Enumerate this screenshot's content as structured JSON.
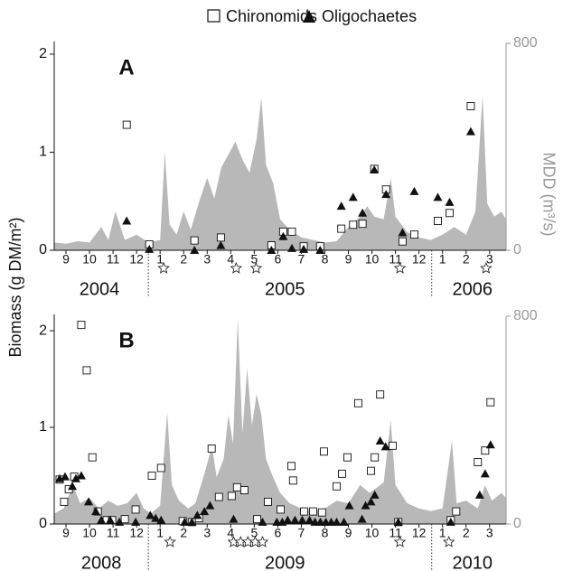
{
  "chart_data": [
    {
      "type": "scatter",
      "panel_label": "A",
      "ylabel": "Biomass (g DM/m²)",
      "y2label": "MDD (m³/s)",
      "xlim": [
        0,
        19.2
      ],
      "xticks": [
        {
          "value": 0.5,
          "label": "9"
        },
        {
          "value": 1.5,
          "label": "10"
        },
        {
          "value": 2.5,
          "label": "11"
        },
        {
          "value": 3.5,
          "label": "12"
        },
        {
          "value": 4.5,
          "label": "1"
        },
        {
          "value": 5.5,
          "label": "2"
        },
        {
          "value": 6.5,
          "label": "3"
        },
        {
          "value": 7.5,
          "label": "4"
        },
        {
          "value": 8.5,
          "label": "5"
        },
        {
          "value": 9.5,
          "label": "6"
        },
        {
          "value": 10.5,
          "label": "7"
        },
        {
          "value": 11.5,
          "label": "8"
        },
        {
          "value": 12.5,
          "label": "9"
        },
        {
          "value": 13.5,
          "label": "10"
        },
        {
          "value": 14.5,
          "label": "11"
        },
        {
          "value": 15.5,
          "label": "12"
        },
        {
          "value": 16.5,
          "label": "1"
        },
        {
          "value": 17.5,
          "label": "2"
        },
        {
          "value": 18.5,
          "label": "3"
        }
      ],
      "year_labels": [
        {
          "value": 1.92,
          "label": "2004"
        },
        {
          "value": 9.8,
          "label": "2005"
        },
        {
          "value": 17.77,
          "label": "2006"
        }
      ],
      "separators": [
        4.0,
        16.04
      ],
      "flood_stars": [
        4.65,
        7.73,
        8.58,
        14.69,
        18.35
      ],
      "ylim": [
        0,
        2.11
      ],
      "yticks": [
        0,
        1,
        2
      ],
      "y2lim": [
        0,
        800
      ],
      "y2ticks": [
        0,
        800
      ],
      "discharge": {
        "axis": "y2",
        "color": "#b8b8b8",
        "x": [
          0,
          0.5,
          1,
          1.5,
          2,
          2.3,
          2.6,
          3,
          3.5,
          4,
          4.5,
          4.7,
          4.9,
          5.2,
          5.5,
          5.8,
          6.2,
          6.5,
          6.8,
          7.1,
          7.4,
          7.7,
          8,
          8.3,
          8.6,
          8.8,
          9,
          9.3,
          9.6,
          10,
          10.5,
          11,
          11.5,
          12,
          12.5,
          13,
          13.3,
          13.6,
          14,
          14.3,
          14.5,
          15,
          15.5,
          16,
          16.5,
          17,
          17.5,
          17.9,
          18.2,
          18.4,
          18.7,
          19,
          19.2
        ],
        "values": [
          30,
          25,
          35,
          30,
          90,
          40,
          150,
          40,
          60,
          30,
          40,
          380,
          100,
          60,
          150,
          80,
          200,
          280,
          200,
          320,
          370,
          420,
          350,
          300,
          430,
          590,
          330,
          260,
          120,
          80,
          50,
          40,
          30,
          35,
          90,
          130,
          170,
          130,
          120,
          280,
          130,
          70,
          50,
          40,
          60,
          90,
          60,
          150,
          600,
          180,
          130,
          150,
          120
        ]
      },
      "series": [
        {
          "name": "Chironomids",
          "color": "#ffffff",
          "marker": "square",
          "x": [
            3.08,
            4.04,
            5.96,
            7.08,
            9.23,
            9.73,
            10.1,
            10.6,
            11.3,
            12.2,
            12.7,
            13.1,
            13.6,
            14.1,
            14.8,
            15.3,
            16.3,
            16.8,
            17.7
          ],
          "values": [
            1.28,
            0.06,
            0.1,
            0.13,
            0.05,
            0.19,
            0.19,
            0.04,
            0.04,
            0.22,
            0.26,
            0.27,
            0.83,
            0.62,
            0.09,
            0.16,
            0.3,
            0.38,
            1.47
          ]
        },
        {
          "name": "Oligochaetes",
          "color": "#111111",
          "marker": "triangle",
          "x": [
            3.08,
            4.04,
            5.96,
            7.08,
            9.23,
            9.73,
            10.1,
            10.6,
            11.3,
            12.2,
            12.7,
            13.1,
            13.6,
            14.1,
            14.8,
            15.3,
            16.3,
            16.8,
            17.7
          ],
          "values": [
            0.3,
            0.01,
            0,
            0.05,
            0,
            0.14,
            0.02,
            0.01,
            0,
            0.45,
            0.54,
            0.38,
            0.82,
            0.57,
            0.18,
            0.6,
            0.54,
            0.49,
            1.21
          ]
        }
      ]
    },
    {
      "type": "scatter",
      "panel_label": "B",
      "xlim": [
        0,
        19.2
      ],
      "xticks": [
        {
          "value": 0.5,
          "label": "9"
        },
        {
          "value": 1.5,
          "label": "10"
        },
        {
          "value": 2.5,
          "label": "11"
        },
        {
          "value": 3.5,
          "label": "12"
        },
        {
          "value": 4.5,
          "label": "1"
        },
        {
          "value": 5.5,
          "label": "2"
        },
        {
          "value": 6.5,
          "label": "3"
        },
        {
          "value": 7.5,
          "label": "4"
        },
        {
          "value": 8.5,
          "label": "5"
        },
        {
          "value": 9.5,
          "label": "6"
        },
        {
          "value": 10.5,
          "label": "7"
        },
        {
          "value": 11.5,
          "label": "8"
        },
        {
          "value": 12.5,
          "label": "9"
        },
        {
          "value": 13.5,
          "label": "10"
        },
        {
          "value": 14.5,
          "label": "11"
        },
        {
          "value": 15.5,
          "label": "12"
        },
        {
          "value": 16.5,
          "label": "1"
        },
        {
          "value": 17.5,
          "label": "2"
        },
        {
          "value": 18.5,
          "label": "3"
        }
      ],
      "year_labels": [
        {
          "value": 2.0,
          "label": "2008"
        },
        {
          "value": 9.8,
          "label": "2009"
        },
        {
          "value": 17.77,
          "label": "2010"
        }
      ],
      "separators": [
        4.0,
        16.04
      ],
      "flood_stars": [
        4.92,
        7.62,
        7.92,
        8.23,
        8.54,
        8.85,
        14.69,
        16.77
      ],
      "ylim": [
        0,
        2.15
      ],
      "yticks": [
        0,
        1,
        2
      ],
      "y2lim": [
        0,
        800
      ],
      "y2ticks": [
        0,
        800
      ],
      "discharge": {
        "axis": "y2",
        "color": "#b8b8b8",
        "x": [
          0,
          0.4,
          0.8,
          1.1,
          1.5,
          1.9,
          2.3,
          2.7,
          3.1,
          3.5,
          3.8,
          4.1,
          4.5,
          4.8,
          5,
          5.3,
          5.7,
          6,
          6.4,
          6.7,
          6.9,
          7.2,
          7.4,
          7.6,
          7.8,
          8,
          8.2,
          8.4,
          8.6,
          8.8,
          9,
          9.3,
          9.6,
          10,
          10.5,
          11,
          11.5,
          12,
          12.5,
          13,
          13.4,
          14,
          14.3,
          14.5,
          15,
          15.5,
          16,
          16.5,
          16.9,
          17.1,
          17.5,
          18,
          18.3,
          18.6,
          19,
          19.2
        ],
        "values": [
          40,
          60,
          150,
          80,
          100,
          60,
          90,
          70,
          80,
          120,
          60,
          40,
          70,
          430,
          150,
          90,
          60,
          80,
          200,
          300,
          180,
          250,
          420,
          310,
          790,
          350,
          600,
          380,
          500,
          420,
          250,
          180,
          120,
          80,
          60,
          50,
          60,
          90,
          80,
          150,
          120,
          160,
          400,
          150,
          80,
          60,
          50,
          60,
          320,
          80,
          90,
          60,
          150,
          90,
          120,
          100
        ]
      },
      "series": [
        {
          "color": "#ffffff",
          "marker": "square",
          "x": [
            0.23,
            0.42,
            0.62,
            0.85,
            1.15,
            1.38,
            1.62,
            1.85,
            2.23,
            2.46,
            3.0,
            3.46,
            4.15,
            4.54,
            5.46,
            5.85,
            6.15,
            6.69,
            7.0,
            7.54,
            7.77,
            8.08,
            8.62,
            9.08,
            9.62,
            10.08,
            10.15,
            10.62,
            11.0,
            11.38,
            11.46,
            12.0,
            12.23,
            12.46,
            12.92,
            13.46,
            13.62,
            13.85,
            14.38,
            14.62,
            16.85,
            17.08,
            18.0,
            18.31,
            18.54
          ],
          "values": [
            0.46,
            0.23,
            0.36,
            0.49,
            2.06,
            1.59,
            0.69,
            0.13,
            0.04,
            0.04,
            0.05,
            0.15,
            0.5,
            0.58,
            0.03,
            0.02,
            0.06,
            0.78,
            0.28,
            0.29,
            0.38,
            0.35,
            0.05,
            0.23,
            0.15,
            0.6,
            0.45,
            0.13,
            0.13,
            0.12,
            0.75,
            0.39,
            0.52,
            0.69,
            1.25,
            0.55,
            0.69,
            1.34,
            0.81,
            0.02,
            0.04,
            0.13,
            0.64,
            0.76,
            1.26
          ]
        },
        {
          "color": "#111111",
          "marker": "triangle",
          "x": [
            0.23,
            0.46,
            0.77,
            0.92,
            1.15,
            1.46,
            1.77,
            2.0,
            2.38,
            2.77,
            3.46,
            4.08,
            4.31,
            4.54,
            5.54,
            5.85,
            6.08,
            6.38,
            6.62,
            7.62,
            8.85,
            9.46,
            9.69,
            9.92,
            10.23,
            10.54,
            10.85,
            11.08,
            11.31,
            11.54,
            11.77,
            12.0,
            12.31,
            12.54,
            13.08,
            13.23,
            13.46,
            13.62,
            13.85,
            14.08,
            14.62,
            16.85,
            18.08,
            18.31,
            18.54
          ],
          "values": [
            0.47,
            0.49,
            0.39,
            0.47,
            0.5,
            0.23,
            0.13,
            0.04,
            0.04,
            0.02,
            0.02,
            0.09,
            0.06,
            0.04,
            0.02,
            0.02,
            0.09,
            0.13,
            0.19,
            0.05,
            0.02,
            0.02,
            0.02,
            0.04,
            0.04,
            0.04,
            0.04,
            0.02,
            0.02,
            0.02,
            0.02,
            0.02,
            0.02,
            0.19,
            0.05,
            0.19,
            0.23,
            0.3,
            0.86,
            0.8,
            0.02,
            0.02,
            0.3,
            0.52,
            0.82
          ]
        }
      ]
    }
  ]
}
